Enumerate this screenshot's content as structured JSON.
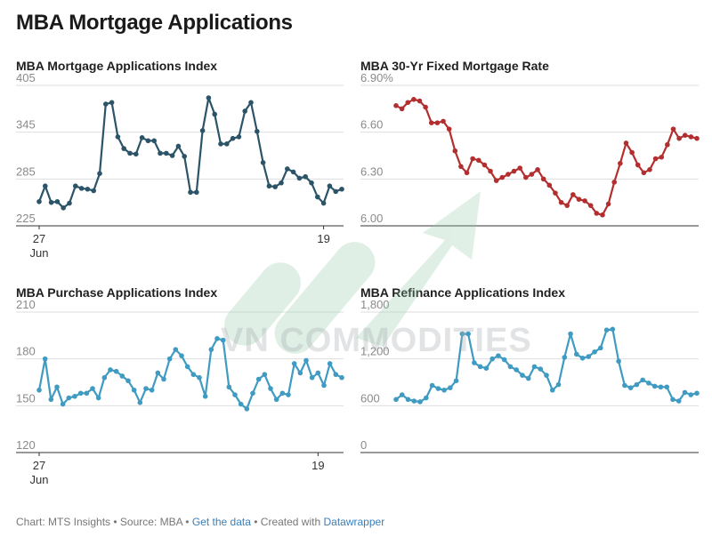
{
  "page": {
    "title": "MBA Mortgage Applications",
    "footer": {
      "chart_by": "Chart: MTS Insights",
      "source": "Source: MBA",
      "get_data": "Get the data",
      "created_with_label": "Created with",
      "tool": "Datawrapper",
      "separator": "•"
    },
    "watermark": "VN COMMODITIES"
  },
  "chart_data": [
    {
      "type": "line",
      "title": "MBA Mortgage Applications Index",
      "color": "#2c5468",
      "ylim": [
        225,
        405
      ],
      "yticks": [
        {
          "v": 225,
          "label": "225"
        },
        {
          "v": 285,
          "label": "285"
        },
        {
          "v": 345,
          "label": "345"
        },
        {
          "v": 405,
          "label": "405"
        }
      ],
      "xticks": [
        {
          "i": 0,
          "label": "27",
          "sub": "Jun"
        },
        {
          "i": 47,
          "label": "19",
          "sub": ""
        }
      ],
      "values": [
        256,
        276,
        255,
        256,
        248,
        254,
        276,
        273,
        272,
        270,
        292,
        381,
        383,
        339,
        324,
        318,
        317,
        338,
        334,
        334,
        318,
        318,
        315,
        327,
        314,
        268,
        268,
        347,
        389,
        368,
        330,
        330,
        337,
        339,
        372,
        383,
        346,
        306,
        276,
        275,
        280,
        298,
        294,
        286,
        288,
        280,
        262,
        254,
        276,
        269,
        272
      ]
    },
    {
      "type": "line",
      "title": "MBA 30-Yr Fixed Mortgage Rate",
      "color": "#b32f2f",
      "ylim": [
        6.0,
        6.9
      ],
      "yticks": [
        {
          "v": 6.0,
          "label": "6.00"
        },
        {
          "v": 6.3,
          "label": "6.30"
        },
        {
          "v": 6.6,
          "label": "6.60"
        },
        {
          "v": 6.9,
          "label": "6.90%"
        }
      ],
      "xticks": [],
      "values": [
        6.77,
        6.75,
        6.79,
        6.81,
        6.8,
        6.76,
        6.66,
        6.66,
        6.67,
        6.62,
        6.48,
        6.38,
        6.34,
        6.43,
        6.42,
        6.39,
        6.35,
        6.29,
        6.31,
        6.33,
        6.35,
        6.37,
        6.31,
        6.33,
        6.36,
        6.3,
        6.26,
        6.21,
        6.15,
        6.13,
        6.2,
        6.17,
        6.16,
        6.13,
        6.08,
        6.07,
        6.14,
        6.28,
        6.4,
        6.53,
        6.47,
        6.39,
        6.34,
        6.36,
        6.43,
        6.44,
        6.52,
        6.62,
        6.56,
        6.58,
        6.57,
        6.56
      ]
    },
    {
      "type": "line",
      "title": "MBA Purchase Applications Index",
      "color": "#3f9bc1",
      "ylim": [
        120,
        210
      ],
      "yticks": [
        {
          "v": 120,
          "label": "120"
        },
        {
          "v": 150,
          "label": "150"
        },
        {
          "v": 180,
          "label": "180"
        },
        {
          "v": 210,
          "label": "210"
        }
      ],
      "xticks": [
        {
          "i": 0,
          "label": "27",
          "sub": "Jun"
        },
        {
          "i": 47,
          "label": "19",
          "sub": ""
        }
      ],
      "values": [
        160,
        180,
        154,
        162,
        151,
        155,
        156,
        158,
        158,
        161,
        155,
        168,
        173,
        172,
        169,
        166,
        160,
        152,
        161,
        160,
        171,
        167,
        180,
        186,
        182,
        175,
        170,
        168,
        156,
        186,
        193,
        192,
        162,
        157,
        151,
        148,
        158,
        167,
        170,
        161,
        154,
        158,
        157,
        177,
        171,
        179,
        168,
        171,
        163,
        177,
        170,
        168
      ]
    },
    {
      "type": "line",
      "title": "MBA Refinance Applications Index",
      "color": "#3f9bc1",
      "ylim": [
        0,
        1800
      ],
      "yticks": [
        {
          "v": 0,
          "label": "0"
        },
        {
          "v": 600,
          "label": "600"
        },
        {
          "v": 1200,
          "label": "1,200"
        },
        {
          "v": 1800,
          "label": "1,800"
        }
      ],
      "xticks": [],
      "values": [
        680,
        740,
        680,
        660,
        650,
        700,
        860,
        820,
        800,
        830,
        920,
        1520,
        1520,
        1150,
        1100,
        1080,
        1200,
        1240,
        1190,
        1100,
        1060,
        990,
        950,
        1100,
        1070,
        990,
        800,
        870,
        1220,
        1520,
        1260,
        1210,
        1230,
        1290,
        1340,
        1570,
        1580,
        1170,
        860,
        830,
        870,
        930,
        890,
        850,
        840,
        840,
        680,
        660,
        770,
        740,
        760
      ]
    }
  ]
}
